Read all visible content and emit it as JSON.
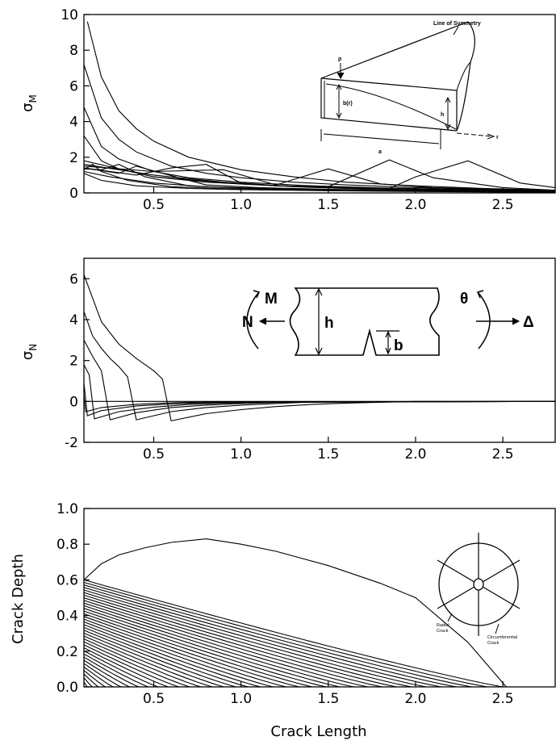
{
  "chart_data": [
    {
      "type": "line",
      "ylabel": "σ",
      "ylabel_sub": "M",
      "xlim": [
        0.1,
        2.8
      ],
      "ylim": [
        0,
        10
      ],
      "xticks": [
        "0.5",
        "1.0",
        "1.5",
        "2.0",
        "2.5"
      ],
      "yticks": [
        "0",
        "2",
        "4",
        "6",
        "8",
        "10"
      ],
      "series": [
        {
          "x": [
            0.12,
            0.2,
            0.3,
            0.4,
            0.5,
            0.7,
            1.0,
            1.3,
            1.6,
            2.0,
            2.4,
            2.8
          ],
          "y": [
            9.6,
            6.5,
            4.6,
            3.6,
            2.9,
            2.0,
            1.3,
            0.9,
            0.6,
            0.4,
            0.25,
            0.15
          ]
        },
        {
          "x": [
            0.1,
            0.2,
            0.3,
            0.4,
            0.6,
            0.8,
            1.0,
            1.3,
            1.6,
            2.0,
            2.4,
            2.8
          ],
          "y": [
            7.2,
            4.2,
            3.0,
            2.3,
            1.5,
            1.1,
            0.85,
            0.6,
            0.45,
            0.3,
            0.2,
            0.12
          ]
        },
        {
          "x": [
            0.1,
            0.2,
            0.3,
            0.5,
            0.7,
            1.0,
            1.4,
            1.8,
            2.2,
            2.8
          ],
          "y": [
            4.8,
            2.6,
            1.9,
            1.2,
            0.85,
            0.6,
            0.4,
            0.28,
            0.2,
            0.12
          ]
        },
        {
          "x": [
            0.1,
            0.2,
            0.3,
            0.5,
            0.8,
            1.2,
            1.6,
            2.0,
            2.4,
            2.8
          ],
          "y": [
            3.2,
            1.8,
            1.35,
            0.9,
            0.6,
            0.4,
            0.3,
            0.22,
            0.15,
            0.1
          ]
        },
        {
          "x": [
            0.1,
            0.5,
            1.0,
            1.5,
            1.85,
            2.0,
            2.3,
            2.6,
            2.8
          ],
          "y": [
            1.8,
            0.9,
            0.5,
            0.3,
            0.25,
            0.9,
            1.8,
            0.55,
            0.3
          ]
        },
        {
          "x": [
            0.1,
            0.5,
            0.9,
            1.2,
            1.5,
            1.85,
            2.1,
            2.5,
            2.8
          ],
          "y": [
            1.6,
            1.0,
            0.6,
            0.4,
            0.35,
            1.85,
            0.85,
            0.3,
            0.15
          ]
        },
        {
          "x": [
            0.1,
            0.5,
            0.9,
            1.2,
            1.5,
            1.8,
            2.1,
            2.5,
            2.8
          ],
          "y": [
            1.5,
            1.2,
            1.3,
            0.45,
            1.35,
            0.5,
            0.3,
            0.2,
            0.1
          ]
        },
        {
          "x": [
            0.1,
            0.4,
            0.6,
            0.8,
            1.0,
            1.3,
            1.6,
            2.0,
            2.4,
            2.8
          ],
          "y": [
            1.4,
            1.0,
            1.4,
            1.6,
            0.55,
            0.35,
            0.25,
            0.18,
            0.12,
            0.08
          ]
        },
        {
          "x": [
            0.1,
            0.3,
            0.4,
            0.55,
            0.8,
            1.1,
            1.5,
            2.0,
            2.5,
            2.8
          ],
          "y": [
            1.4,
            1.1,
            1.5,
            1.1,
            0.45,
            0.3,
            0.2,
            0.14,
            0.1,
            0.06
          ]
        },
        {
          "x": [
            0.1,
            0.2,
            0.3,
            0.45,
            0.7,
            1.0,
            1.5,
            2.0,
            2.5,
            2.8
          ],
          "y": [
            1.35,
            1.3,
            1.6,
            0.9,
            0.4,
            0.25,
            0.16,
            0.11,
            0.08,
            0.05
          ]
        },
        {
          "x": [
            0.1,
            0.15,
            0.2,
            0.35,
            0.6,
            1.0,
            1.5,
            2.0,
            2.5,
            2.8
          ],
          "y": [
            1.3,
            1.6,
            1.2,
            0.7,
            0.35,
            0.2,
            0.13,
            0.09,
            0.06,
            0.04
          ]
        },
        {
          "x": [
            0.1,
            0.25,
            0.5,
            0.8,
            1.2,
            1.6,
            2.0,
            2.5,
            2.8
          ],
          "y": [
            1.2,
            0.9,
            0.55,
            0.35,
            0.22,
            0.15,
            0.1,
            0.07,
            0.05
          ]
        },
        {
          "x": [
            0.1,
            0.2,
            0.4,
            0.7,
            1.0,
            1.5,
            2.0,
            2.5,
            2.8
          ],
          "y": [
            1.1,
            0.7,
            0.4,
            0.25,
            0.18,
            0.12,
            0.08,
            0.05,
            0.04
          ]
        }
      ]
    },
    {
      "type": "line",
      "ylabel": "σ",
      "ylabel_sub": "N",
      "xlim": [
        0.1,
        2.8
      ],
      "ylim": [
        -2,
        7
      ],
      "xticks": [
        "0.5",
        "1.0",
        "1.5",
        "2.0",
        "2.5"
      ],
      "yticks": [
        "-2",
        "0",
        "2",
        "4",
        "6"
      ],
      "series": [
        {
          "x": [
            0.1,
            0.2,
            0.3,
            0.4,
            0.5,
            0.55,
            0.6,
            0.8,
            1.0,
            1.2,
            1.4,
            1.6,
            2.0,
            2.8
          ],
          "y": [
            6.2,
            3.9,
            2.8,
            2.1,
            1.5,
            1.1,
            -0.95,
            -0.6,
            -0.4,
            -0.25,
            -0.15,
            -0.08,
            0,
            0
          ]
        },
        {
          "x": [
            0.1,
            0.15,
            0.2,
            0.25,
            0.3,
            0.35,
            0.4,
            0.6,
            0.8,
            1.0,
            1.2,
            1.4,
            2.8
          ],
          "y": [
            4.4,
            3.2,
            2.6,
            2.1,
            1.7,
            1.2,
            -0.9,
            -0.5,
            -0.3,
            -0.18,
            -0.1,
            -0.03,
            0
          ]
        },
        {
          "x": [
            0.1,
            0.15,
            0.2,
            0.25,
            0.4,
            0.6,
            0.8,
            1.0,
            1.2,
            2.8
          ],
          "y": [
            3.0,
            2.2,
            1.5,
            -0.9,
            -0.55,
            -0.3,
            -0.18,
            -0.1,
            -0.05,
            0
          ]
        },
        {
          "x": [
            0.1,
            0.13,
            0.16,
            0.3,
            0.5,
            0.7,
            0.9,
            1.2,
            2.8
          ],
          "y": [
            1.8,
            1.3,
            -0.85,
            -0.5,
            -0.28,
            -0.15,
            -0.08,
            -0.03,
            0
          ]
        },
        {
          "x": [
            0.1,
            0.12,
            0.2,
            0.4,
            0.6,
            0.8,
            1.0,
            2.8
          ],
          "y": [
            0.9,
            -0.7,
            -0.45,
            -0.22,
            -0.12,
            -0.06,
            -0.03,
            0
          ]
        },
        {
          "x": [
            0.1,
            0.11,
            0.2,
            0.4,
            0.6,
            0.8,
            2.8
          ],
          "y": [
            0.3,
            -0.5,
            -0.3,
            -0.14,
            -0.07,
            -0.03,
            0
          ]
        },
        {
          "x": [
            0.1,
            2.8
          ],
          "y": [
            0,
            0
          ]
        }
      ]
    },
    {
      "type": "line",
      "xlabel": "Crack Length",
      "ylabel": "Crack Depth",
      "xlim": [
        0.1,
        2.8
      ],
      "ylim": [
        0,
        1.0
      ],
      "xticks": [
        "0.5",
        "1.0",
        "1.5",
        "2.0",
        "2.5"
      ],
      "yticks": [
        "0.0",
        "0.2",
        "0.4",
        "0.6",
        "0.8",
        "1.0"
      ],
      "boundary": {
        "x": [
          0.1,
          0.2,
          0.3,
          0.45,
          0.6,
          0.8,
          1.0,
          1.2,
          1.5,
          1.8,
          2.0,
          2.3,
          2.52
        ],
        "y": [
          0.6,
          0.69,
          0.74,
          0.78,
          0.81,
          0.83,
          0.8,
          0.76,
          0.68,
          0.58,
          0.5,
          0.25,
          0.0
        ]
      },
      "contour_series_count": 36
    }
  ],
  "insets": {
    "beam": {
      "p_label": "p",
      "sym_label": "Line of Symmetry",
      "b_label": "b(r)",
      "h_label": "h",
      "a_label": "a",
      "r_label": "r"
    },
    "specimen": {
      "N_label": "N",
      "M_label": "M",
      "h_label": "h",
      "b_label": "b",
      "theta_label": "θ",
      "delta_label": "Δ"
    },
    "disk": {
      "radial_label_1": "Radial",
      "radial_label_2": "Crack",
      "circ_label_1": "Circumferential",
      "circ_label_2": "Crack"
    }
  }
}
